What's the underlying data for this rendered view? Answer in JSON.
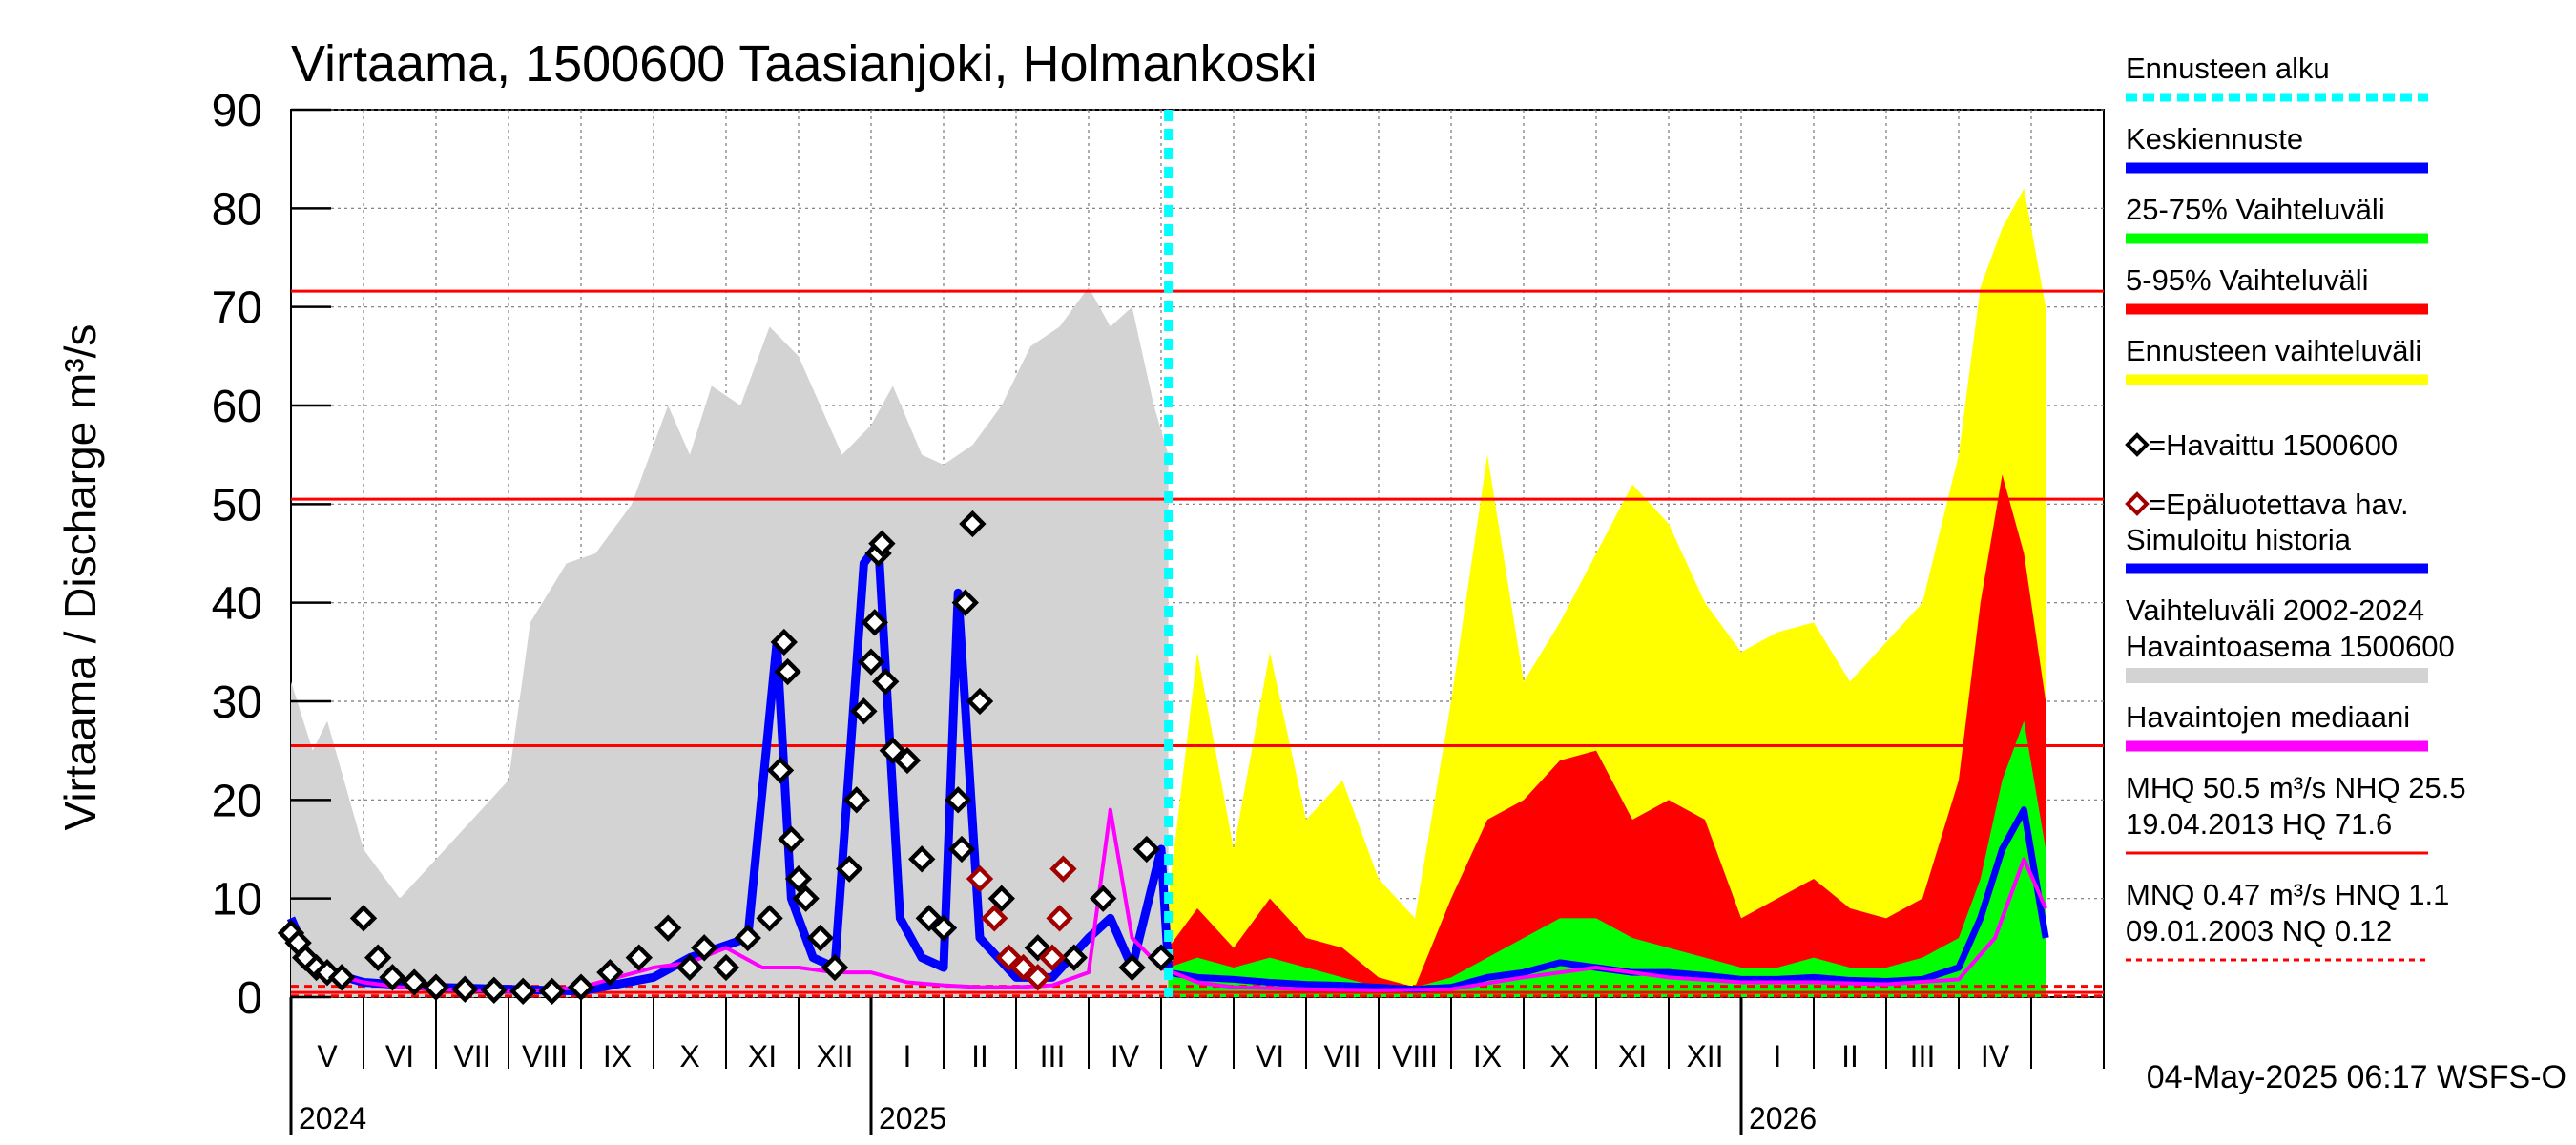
{
  "chart_data": {
    "type": "area",
    "title": "Virtaama, 1500600 Taasianjoki, Holmankoski",
    "ylabel": "Virtaama / Discharge    m³/s",
    "ylim": [
      0,
      90
    ],
    "y_ticks": [
      "0",
      "10",
      "20",
      "30",
      "40",
      "50",
      "60",
      "70",
      "80",
      "90"
    ],
    "x_range_months": [
      0,
      25
    ],
    "months": [
      "V",
      "VI",
      "VII",
      "VIII",
      "IX",
      "X",
      "XI",
      "XII",
      "I",
      "II",
      "III",
      "IV",
      "V",
      "VI",
      "VII",
      "VIII",
      "IX",
      "X",
      "XI",
      "XII",
      "I",
      "II",
      "III",
      "IV"
    ],
    "years": [
      {
        "label": "2024",
        "month_index": 0
      },
      {
        "label": "2025",
        "month_index": 8
      },
      {
        "label": "2026",
        "month_index": 20
      }
    ],
    "forecast_start_month": 12.1,
    "reference_lines": [
      {
        "name": "HQ",
        "value": 71.6,
        "style": "solid"
      },
      {
        "name": "MHQ",
        "value": 50.5,
        "style": "solid"
      },
      {
        "name": "NHQ",
        "value": 25.5,
        "style": "solid"
      },
      {
        "name": "HNQ",
        "value": 1.1,
        "style": "dashed"
      },
      {
        "name": "MNQ",
        "value": 0.47,
        "style": "solid"
      },
      {
        "name": "NQ",
        "value": 0.12,
        "style": "dashed"
      }
    ],
    "series": [
      {
        "name": "Vaihteluväli 2002-2024",
        "color": "#d3d3d3",
        "x": [
          0,
          0.3,
          0.5,
          1,
          1.5,
          2,
          2.5,
          3,
          3.3,
          3.8,
          4.2,
          4.7,
          5.2,
          5.5,
          5.8,
          6.2,
          6.6,
          7,
          7.3,
          7.6,
          8,
          8.3,
          8.7,
          9,
          9.4,
          9.8,
          10.2,
          10.6,
          11,
          11.3,
          11.6,
          11.9,
          12.1
        ],
        "values": [
          32,
          25,
          28,
          15,
          10,
          14,
          18,
          22,
          38,
          44,
          45,
          50,
          60,
          55,
          62,
          60,
          68,
          65,
          60,
          55,
          58,
          62,
          55,
          54,
          56,
          60,
          66,
          68,
          72,
          68,
          70,
          60,
          55
        ]
      },
      {
        "name": "Ennusteen vaihteluväli",
        "color": "#ffff00",
        "x": [
          12.1,
          12.5,
          13,
          13.5,
          14,
          14.5,
          15,
          15.5,
          16,
          16.5,
          17,
          17.5,
          18,
          18.5,
          19,
          19.5,
          20,
          20.5,
          21,
          21.5,
          22,
          22.5,
          23,
          23.3,
          23.6,
          23.9,
          24.2
        ],
        "values": [
          10,
          35,
          15,
          35,
          18,
          22,
          12,
          8,
          30,
          55,
          32,
          38,
          45,
          52,
          48,
          40,
          35,
          37,
          38,
          32,
          36,
          40,
          55,
          72,
          78,
          82,
          70
        ]
      },
      {
        "name": "5-95% Vaihteluväli",
        "color": "#ff0000",
        "x": [
          12.1,
          12.5,
          13,
          13.5,
          14,
          14.5,
          15,
          15.5,
          16,
          16.5,
          17,
          17.5,
          18,
          18.5,
          19,
          19.5,
          20,
          20.5,
          21,
          21.5,
          22,
          22.5,
          23,
          23.3,
          23.6,
          23.9,
          24.2
        ],
        "values": [
          5,
          9,
          5,
          10,
          6,
          5,
          2,
          1,
          10,
          18,
          20,
          24,
          25,
          18,
          20,
          18,
          8,
          10,
          12,
          9,
          8,
          10,
          22,
          40,
          53,
          45,
          30
        ]
      },
      {
        "name": "25-75% Vaihteluväli",
        "color": "#00ff00",
        "x": [
          12.1,
          12.5,
          13,
          13.5,
          14,
          14.5,
          15,
          15.5,
          16,
          16.5,
          17,
          17.5,
          18,
          18.5,
          19,
          19.5,
          20,
          20.5,
          21,
          21.5,
          22,
          22.5,
          23,
          23.3,
          23.6,
          23.9,
          24.2
        ],
        "values": [
          3,
          4,
          3,
          4,
          3,
          2,
          1,
          1,
          2,
          4,
          6,
          8,
          8,
          6,
          5,
          4,
          3,
          3,
          4,
          3,
          3,
          4,
          6,
          12,
          22,
          28,
          15
        ]
      },
      {
        "name": "Keskiennuste",
        "color": "#0000ff",
        "x": [
          12.1,
          12.5,
          13,
          13.5,
          14,
          14.5,
          15,
          15.5,
          16,
          16.5,
          17,
          17.5,
          18,
          18.5,
          19,
          19.5,
          20,
          20.5,
          21,
          21.5,
          22,
          22.5,
          23,
          23.3,
          23.6,
          23.9,
          24.2
        ],
        "values": [
          2.5,
          2,
          1.8,
          1.5,
          1.3,
          1.2,
          1,
          0.8,
          1,
          2,
          2.5,
          3.5,
          3,
          2.5,
          2.5,
          2.2,
          1.8,
          1.8,
          2,
          1.7,
          1.6,
          1.8,
          3,
          8,
          15,
          19,
          6
        ]
      },
      {
        "name": "Havaintojen mediaani",
        "color": "#ff00ff",
        "x": [
          0,
          0.5,
          1,
          1.5,
          2,
          2.5,
          3,
          3.5,
          4,
          4.5,
          5,
          5.5,
          6,
          6.5,
          7,
          7.5,
          8,
          8.5,
          9,
          9.5,
          10,
          10.5,
          11,
          11.3,
          11.6,
          12,
          12.5,
          13,
          14,
          15,
          16,
          17,
          18,
          19,
          20,
          21,
          22,
          23,
          23.5,
          23.9,
          24.2
        ],
        "values": [
          6,
          2.5,
          1.5,
          1,
          0.8,
          0.7,
          0.6,
          0.7,
          1,
          2,
          3,
          3.5,
          5,
          3,
          3,
          2.5,
          2.5,
          1.5,
          1.2,
          1,
          1,
          1.2,
          2.5,
          19,
          6,
          3,
          1.5,
          1,
          0.8,
          0.7,
          0.8,
          2,
          3,
          2,
          1.5,
          1.5,
          1.3,
          1.8,
          6,
          14,
          9
        ]
      },
      {
        "name": "Simuloitu historia",
        "color": "#0000ff",
        "x": [
          0,
          0.3,
          1,
          2,
          3,
          4,
          5,
          5.5,
          6.3,
          6.7,
          6.9,
          7.2,
          7.5,
          7.9,
          8.1,
          8.4,
          8.7,
          9,
          9.2,
          9.5,
          10,
          10.5,
          11,
          11.3,
          11.6,
          12,
          12.1
        ],
        "values": [
          8,
          3,
          1.5,
          1,
          0.8,
          0.6,
          2,
          4,
          6,
          36,
          10,
          4,
          3,
          44,
          46,
          8,
          4,
          3,
          41,
          6,
          2,
          2,
          6,
          8,
          3,
          15,
          3
        ]
      }
    ],
    "observed_points": {
      "name": "=Havaittu 1500600",
      "x": [
        0,
        0.1,
        0.2,
        0.35,
        0.5,
        0.7,
        1,
        1.2,
        1.4,
        1.7,
        2,
        2.4,
        2.8,
        3.2,
        3.6,
        4,
        4.4,
        4.8,
        5.2,
        5.5,
        5.7,
        6,
        6.3,
        6.6,
        6.75,
        6.8,
        6.85,
        6.9,
        7.0,
        7.1,
        7.3,
        7.5,
        7.7,
        7.8,
        7.9,
        8.0,
        8.05,
        8.1,
        8.15,
        8.2,
        8.3,
        8.5,
        8.7,
        8.8,
        9.0,
        9.2,
        9.25,
        9.3,
        9.4,
        9.5,
        9.8,
        10.3,
        10.8,
        11.2,
        11.6,
        11.8,
        12.0
      ],
      "values": [
        6.5,
        5.5,
        4,
        3,
        2.5,
        2,
        8,
        4,
        2,
        1.5,
        1,
        0.8,
        0.7,
        0.6,
        0.6,
        1,
        2.5,
        4,
        7,
        3,
        5,
        3,
        6,
        8,
        23,
        36,
        33,
        16,
        12,
        10,
        6,
        3,
        13,
        20,
        29,
        34,
        38,
        45,
        46,
        32,
        25,
        24,
        14,
        8,
        7,
        20,
        15,
        40,
        48,
        30,
        10,
        5,
        4,
        10,
        3,
        15,
        4
      ]
    },
    "unreliable_points": {
      "name": "=Epäluotettava hav.",
      "x": [
        9.5,
        9.7,
        9.9,
        10.1,
        10.3,
        10.5,
        10.6,
        10.65
      ],
      "values": [
        12,
        8,
        4,
        3,
        2,
        4,
        8,
        13
      ]
    },
    "legend": [
      {
        "label": "Ennusteen alku",
        "color": "#00ffff",
        "kind": "dashed"
      },
      {
        "label": "Keskiennuste",
        "color": "#0000ff",
        "kind": "line"
      },
      {
        "label": "25-75% Vaihteluväli",
        "color": "#00ff00",
        "kind": "line"
      },
      {
        "label": "5-95% Vaihteluväli",
        "color": "#ff0000",
        "kind": "line"
      },
      {
        "label": "Ennusteen vaihteluväli",
        "color": "#ffff00",
        "kind": "line"
      },
      {
        "label": "=Havaittu 1500600",
        "color": "#000000",
        "kind": "diamond"
      },
      {
        "label": "=Epäluotettava hav.",
        "color": "#a00000",
        "kind": "diamond"
      },
      {
        "label": "Simuloitu historia",
        "color": "#0000ff",
        "kind": "line"
      },
      {
        "label": "Vaihteluväli 2002-2024\n Havaintoasema 1500600",
        "color": "#d3d3d3",
        "kind": "line"
      },
      {
        "label": "Havaintojen mediaani",
        "color": "#ff00ff",
        "kind": "line"
      },
      {
        "label": "MHQ 50.5 m³/s NHQ 25.5\n19.04.2013 HQ 71.6",
        "color": "#ff0000",
        "kind": "thin"
      },
      {
        "label": "MNQ 0.47 m³/s HNQ  1.1\n09.01.2003 NQ 0.12",
        "color": "#ff0000",
        "kind": "dotted"
      }
    ],
    "footer": "04-May-2025 06:17 WSFS-O"
  }
}
